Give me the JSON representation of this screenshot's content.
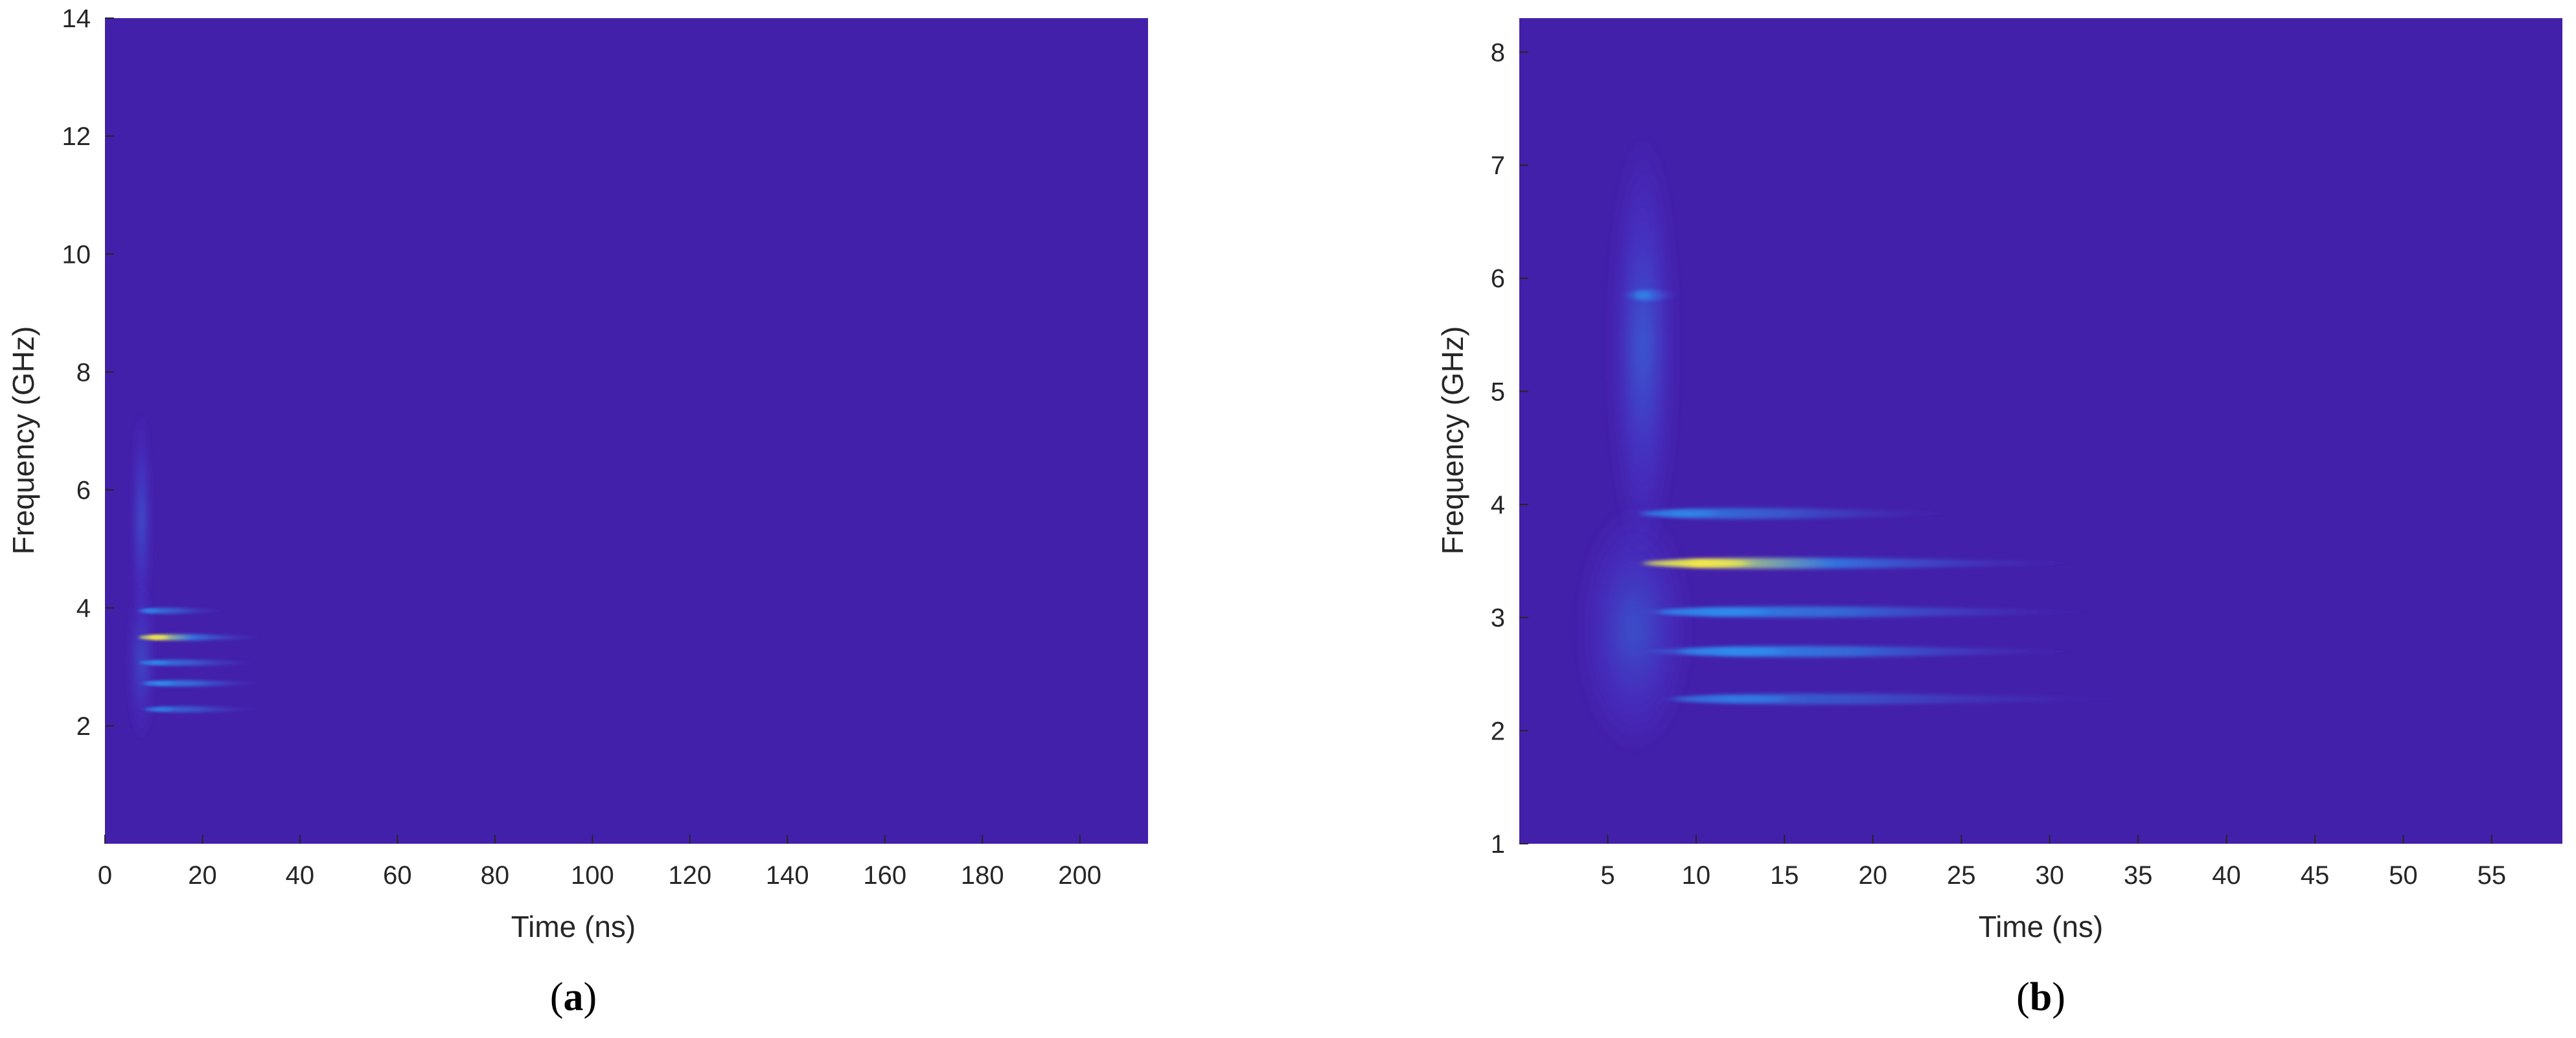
{
  "chart_data": [
    {
      "type": "heatmap",
      "panel_label": {
        "open": "(",
        "letter": "a",
        "close": ")"
      },
      "xlabel": "Time (ns)",
      "ylabel": "Frequency (GHz)",
      "xlim": [
        0,
        214
      ],
      "ylim": [
        0,
        14
      ],
      "xticks": [
        0,
        20,
        40,
        60,
        80,
        100,
        120,
        140,
        160,
        180,
        200
      ],
      "yticks": [
        2,
        4,
        6,
        8,
        10,
        12,
        14
      ],
      "colors": {
        "background": "#4320AA",
        "low": "#4A3FD8",
        "mid": "#2E8FF0",
        "high": "#F2E94A"
      },
      "features": [
        {
          "kind": "lobe",
          "t_center": 7.5,
          "f_center": 5.5,
          "t_halfwidth": 1.8,
          "f_halfheight": 1.9,
          "intensity": 0.18
        },
        {
          "kind": "lobe",
          "t_center": 7.5,
          "f_center": 3.1,
          "t_halfwidth": 2.8,
          "f_halfheight": 1.4,
          "intensity": 0.14
        },
        {
          "kind": "band",
          "f": 3.95,
          "t_start": 7,
          "t_peak": 9,
          "t_end": 25,
          "intensity": 0.55
        },
        {
          "kind": "band",
          "f": 3.5,
          "t_start": 7,
          "t_peak": 10,
          "t_end": 33,
          "intensity": 1.0
        },
        {
          "kind": "band",
          "f": 3.07,
          "t_start": 7,
          "t_peak": 10,
          "t_end": 32,
          "intensity": 0.6
        },
        {
          "kind": "band",
          "f": 2.72,
          "t_start": 7,
          "t_peak": 11,
          "t_end": 33,
          "intensity": 0.75
        },
        {
          "kind": "band",
          "f": 2.28,
          "t_start": 8,
          "t_peak": 11,
          "t_end": 33,
          "intensity": 0.45
        }
      ]
    },
    {
      "type": "heatmap",
      "panel_label": {
        "open": "(",
        "letter": "b",
        "close": ")"
      },
      "xlabel": "Time (ns)",
      "ylabel": "Frequency (GHz)",
      "xlim": [
        0,
        59
      ],
      "ylim": [
        1,
        8.3
      ],
      "xticks": [
        5,
        10,
        15,
        20,
        25,
        30,
        35,
        40,
        45,
        50,
        55
      ],
      "yticks": [
        1,
        2,
        3,
        4,
        5,
        6,
        7,
        8
      ],
      "colors": {
        "background": "#4320AA",
        "low": "#4A3FD8",
        "mid": "#2E8FF0",
        "high": "#F2E94A"
      },
      "features": [
        {
          "kind": "lobe",
          "t_center": 7.0,
          "f_center": 5.4,
          "t_halfwidth": 1.8,
          "f_halfheight": 1.9,
          "intensity": 0.2
        },
        {
          "kind": "lobe",
          "t_center": 6.5,
          "f_center": 2.9,
          "t_halfwidth": 3.2,
          "f_halfheight": 1.1,
          "intensity": 0.16
        },
        {
          "kind": "band",
          "f": 5.85,
          "t_start": 6,
          "t_peak": 7,
          "t_end": 9,
          "intensity": 0.4
        },
        {
          "kind": "band",
          "f": 3.92,
          "t_start": 7,
          "t_peak": 9,
          "t_end": 25,
          "intensity": 0.55
        },
        {
          "kind": "band",
          "f": 3.48,
          "t_start": 7,
          "t_peak": 10,
          "t_end": 32,
          "intensity": 1.0
        },
        {
          "kind": "band",
          "f": 3.05,
          "t_start": 7,
          "t_peak": 11,
          "t_end": 33,
          "intensity": 0.75
        },
        {
          "kind": "band",
          "f": 2.7,
          "t_start": 7,
          "t_peak": 12,
          "t_end": 32,
          "intensity": 0.8
        },
        {
          "kind": "band",
          "f": 2.28,
          "t_start": 8,
          "t_peak": 12,
          "t_end": 35,
          "intensity": 0.35
        }
      ]
    }
  ]
}
